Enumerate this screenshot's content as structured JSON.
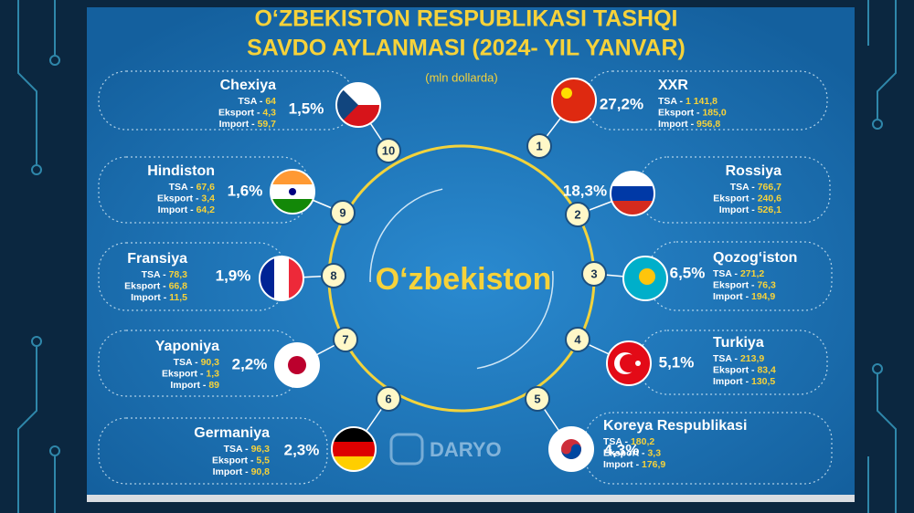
{
  "header": {
    "title_line1": "O‘ZBEKISTON RESPUBLIKASI TASHQI",
    "title_line2": "SAVDO AYLANMASI (2024- YIL YANVAR)",
    "subtitle": "(mln dollarda)"
  },
  "center": "O‘zbekiston",
  "watermark": "DARYO",
  "countries": [
    {
      "rank": "1",
      "name": "XXR",
      "share": "27,2%",
      "stats": [
        {
          "label": "TSA -",
          "value": "1 141,8"
        },
        {
          "label": "Eksport -",
          "value": "185,0"
        },
        {
          "label": "Import -",
          "value": "956,8"
        }
      ]
    },
    {
      "rank": "2",
      "name": "Rossiya",
      "share": "18,3%",
      "stats": [
        {
          "label": "TSA -",
          "value": "766,7"
        },
        {
          "label": "Eksport -",
          "value": "240,6"
        },
        {
          "label": "Import -",
          "value": "526,1"
        }
      ]
    },
    {
      "rank": "3",
      "name": "Qozog‘iston",
      "share": "6,5%",
      "stats": [
        {
          "label": "TSA -",
          "value": "271,2"
        },
        {
          "label": "Eksport -",
          "value": "76,3"
        },
        {
          "label": "Import -",
          "value": "194,9"
        }
      ]
    },
    {
      "rank": "4",
      "name": "Turkiya",
      "share": "5,1%",
      "stats": [
        {
          "label": "TSA -",
          "value": "213,9"
        },
        {
          "label": "Eksport -",
          "value": "83,4"
        },
        {
          "label": "Import -",
          "value": "130,5"
        }
      ]
    },
    {
      "rank": "5",
      "name": "Koreya Respublikasi",
      "share": "4,3%",
      "stats": [
        {
          "label": "TSA -",
          "value": "180,2"
        },
        {
          "label": "Eksport -",
          "value": "3,3"
        },
        {
          "label": "Import -",
          "value": "176,9"
        }
      ]
    },
    {
      "rank": "6",
      "name": "Germaniya",
      "share": "2,3%",
      "stats": [
        {
          "label": "TSA -",
          "value": "96,3"
        },
        {
          "label": "Eksport -",
          "value": "5,5"
        },
        {
          "label": "Import -",
          "value": "90,8"
        }
      ]
    },
    {
      "rank": "7",
      "name": "Yaponiya",
      "share": "2,2%",
      "stats": [
        {
          "label": "TSA -",
          "value": "90,3"
        },
        {
          "label": "Eksport -",
          "value": "1,3"
        },
        {
          "label": "Import -",
          "value": "89"
        }
      ]
    },
    {
      "rank": "8",
      "name": "Fransiya",
      "share": "1,9%",
      "stats": [
        {
          "label": "TSA -",
          "value": "78,3"
        },
        {
          "label": "Eksport -",
          "value": "66,8"
        },
        {
          "label": "Import -",
          "value": "11,5"
        }
      ]
    },
    {
      "rank": "9",
      "name": "Hindiston",
      "share": "1,6%",
      "stats": [
        {
          "label": "TSA -",
          "value": "67,6"
        },
        {
          "label": "Eksport -",
          "value": "3,4"
        },
        {
          "label": "Import -",
          "value": "64,2"
        }
      ]
    },
    {
      "rank": "10",
      "name": "Chexiya",
      "share": "1,5%",
      "stats": [
        {
          "label": "TSA -",
          "value": "64"
        },
        {
          "label": "Eksport -",
          "value": "4,3"
        },
        {
          "label": "Import -",
          "value": "59,7"
        }
      ]
    }
  ]
}
